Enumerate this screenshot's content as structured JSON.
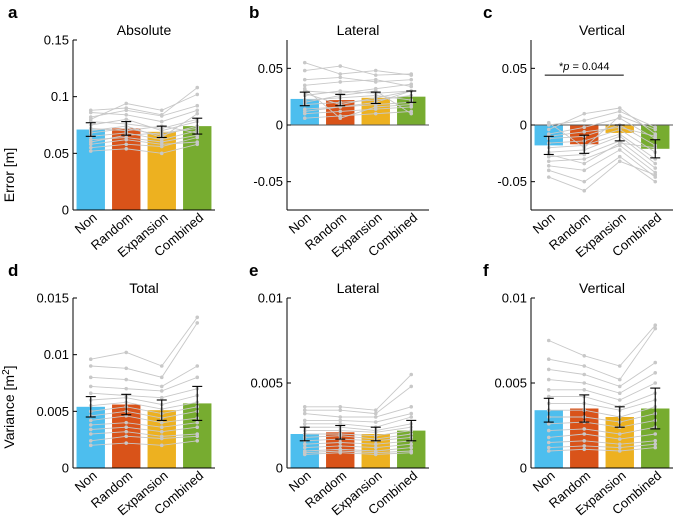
{
  "figure": {
    "ylabel_top": "Error [m]",
    "ylabel_bottom_main": "Variance [m",
    "ylabel_bottom_sup": "2",
    "ylabel_bottom_end": "]"
  },
  "colors": {
    "Non": "#4DBEEE",
    "Random": "#D95319",
    "Expansion": "#EDB120",
    "Combined": "#77AC30",
    "points": "#c8c8c8"
  },
  "chart_data": [
    {
      "id": "a",
      "panel_label": "a",
      "title": "Absolute",
      "type": "bar",
      "categories": [
        "Non",
        "Random",
        "Expansion",
        "Combined"
      ],
      "values": [
        0.071,
        0.072,
        0.069,
        0.074
      ],
      "err": [
        0.006,
        0.006,
        0.005,
        0.007
      ],
      "ylim": [
        0,
        0.15
      ],
      "yticks": [
        0,
        0.05,
        0.1,
        0.15
      ],
      "ytick_labels": [
        "0",
        "0.05",
        "0.1",
        "0.15"
      ],
      "subjects": [
        [
          0.086,
          0.084,
          0.078,
          0.088
        ],
        [
          0.082,
          0.088,
          0.083,
          0.092
        ],
        [
          0.078,
          0.076,
          0.072,
          0.08
        ],
        [
          0.075,
          0.08,
          0.07,
          0.078
        ],
        [
          0.072,
          0.07,
          0.074,
          0.068
        ],
        [
          0.068,
          0.072,
          0.066,
          0.074
        ],
        [
          0.065,
          0.068,
          0.062,
          0.07
        ],
        [
          0.062,
          0.064,
          0.06,
          0.066
        ],
        [
          0.058,
          0.062,
          0.058,
          0.06
        ],
        [
          0.055,
          0.058,
          0.056,
          0.064
        ],
        [
          0.052,
          0.054,
          0.05,
          0.058
        ],
        [
          0.08,
          0.094,
          0.088,
          0.102
        ],
        [
          0.088,
          0.09,
          0.084,
          0.108
        ],
        [
          0.06,
          0.066,
          0.068,
          0.072
        ],
        [
          0.07,
          0.074,
          0.064,
          0.085
        ]
      ]
    },
    {
      "id": "b",
      "panel_label": "b",
      "title": "Lateral",
      "type": "bar",
      "categories": [
        "Non",
        "Random",
        "Expansion",
        "Combined"
      ],
      "values": [
        0.023,
        0.022,
        0.024,
        0.025
      ],
      "err": [
        0.006,
        0.005,
        0.005,
        0.005
      ],
      "ylim": [
        -0.075,
        0.075
      ],
      "yticks": [
        -0.05,
        0,
        0.05
      ],
      "ytick_labels": [
        "-0.05",
        "0",
        "0.05"
      ],
      "subjects": [
        [
          0.055,
          0.045,
          0.048,
          0.044
        ],
        [
          0.048,
          0.052,
          0.044,
          0.045
        ],
        [
          0.04,
          0.042,
          0.038,
          0.04
        ],
        [
          0.035,
          0.038,
          0.04,
          0.034
        ],
        [
          0.03,
          0.028,
          0.032,
          0.036
        ],
        [
          0.026,
          0.03,
          0.028,
          0.03
        ],
        [
          0.022,
          0.024,
          0.026,
          0.022
        ],
        [
          0.018,
          0.02,
          0.022,
          0.026
        ],
        [
          0.014,
          0.016,
          0.018,
          0.02
        ],
        [
          0.01,
          0.012,
          0.014,
          0.016
        ],
        [
          0.006,
          0.008,
          0.01,
          0.012
        ],
        [
          0.028,
          0.018,
          0.024,
          0.03
        ],
        [
          0.02,
          0.026,
          0.03,
          0.01
        ],
        [
          0.012,
          0.016,
          0.02,
          0.03
        ],
        [
          0.032,
          0.006,
          0.016,
          0.018
        ]
      ]
    },
    {
      "id": "c",
      "panel_label": "c",
      "title": "Vertical",
      "type": "bar",
      "categories": [
        "Non",
        "Random",
        "Expansion",
        "Combined"
      ],
      "values": [
        -0.018,
        -0.017,
        -0.007,
        -0.021
      ],
      "err": [
        0.008,
        0.008,
        0.007,
        0.008
      ],
      "ylim": [
        -0.075,
        0.075
      ],
      "yticks": [
        -0.05,
        0,
        0.05
      ],
      "ytick_labels": [
        "-0.05",
        "0",
        "0.05"
      ],
      "annotation": {
        "star": "*",
        "p_label": "p",
        "p_value": "= 0.044"
      },
      "subjects": [
        [
          0.0,
          0.004,
          0.012,
          -0.002
        ],
        [
          -0.004,
          0.01,
          0.015,
          -0.008
        ],
        [
          -0.008,
          -0.002,
          0.006,
          -0.012
        ],
        [
          -0.012,
          -0.01,
          0.0,
          -0.018
        ],
        [
          -0.016,
          -0.014,
          -0.004,
          -0.024
        ],
        [
          -0.02,
          -0.018,
          -0.008,
          -0.03
        ],
        [
          -0.024,
          -0.022,
          -0.01,
          -0.034
        ],
        [
          -0.028,
          -0.026,
          -0.014,
          -0.038
        ],
        [
          -0.032,
          -0.03,
          -0.018,
          -0.042
        ],
        [
          -0.036,
          -0.04,
          -0.022,
          -0.046
        ],
        [
          -0.04,
          -0.05,
          -0.028,
          -0.05
        ],
        [
          -0.046,
          -0.058,
          -0.032,
          -0.044
        ],
        [
          -0.01,
          -0.006,
          -0.002,
          -0.01
        ],
        [
          0.002,
          -0.02,
          0.008,
          -0.004
        ],
        [
          -0.026,
          -0.034,
          -0.016,
          -0.02
        ]
      ]
    },
    {
      "id": "d",
      "panel_label": "d",
      "title": "Total",
      "type": "bar",
      "categories": [
        "Non",
        "Random",
        "Expansion",
        "Combined"
      ],
      "values": [
        0.0054,
        0.0056,
        0.0051,
        0.0057
      ],
      "err": [
        0.0009,
        0.0009,
        0.0009,
        0.0015
      ],
      "ylim": [
        0,
        0.015
      ],
      "yticks": [
        0,
        0.005,
        0.01,
        0.015
      ],
      "ytick_labels": [
        "0",
        "0.005",
        "0.01",
        "0.015"
      ],
      "subjects": [
        [
          0.0096,
          0.0102,
          0.009,
          0.0133
        ],
        [
          0.009,
          0.0088,
          0.008,
          0.0128
        ],
        [
          0.008,
          0.0078,
          0.0072,
          0.009
        ],
        [
          0.0072,
          0.007,
          0.0068,
          0.008
        ],
        [
          0.0066,
          0.0064,
          0.0062,
          0.007
        ],
        [
          0.006,
          0.0062,
          0.0056,
          0.0064
        ],
        [
          0.0055,
          0.0058,
          0.0052,
          0.0058
        ],
        [
          0.005,
          0.0054,
          0.0048,
          0.0054
        ],
        [
          0.0046,
          0.005,
          0.0044,
          0.005
        ],
        [
          0.0042,
          0.0046,
          0.004,
          0.0044
        ],
        [
          0.0038,
          0.004,
          0.0036,
          0.004
        ],
        [
          0.0034,
          0.0036,
          0.0032,
          0.0036
        ],
        [
          0.003,
          0.0032,
          0.0028,
          0.003
        ],
        [
          0.0024,
          0.0028,
          0.0026,
          0.0028
        ],
        [
          0.002,
          0.0022,
          0.002,
          0.0024
        ]
      ]
    },
    {
      "id": "e",
      "panel_label": "e",
      "title": "Lateral",
      "type": "bar",
      "categories": [
        "Non",
        "Random",
        "Expansion",
        "Combined"
      ],
      "values": [
        0.002,
        0.0021,
        0.002,
        0.0022
      ],
      "err": [
        0.0004,
        0.0004,
        0.0004,
        0.0006
      ],
      "ylim": [
        0,
        0.01
      ],
      "yticks": [
        0,
        0.005,
        0.01
      ],
      "ytick_labels": [
        "0",
        "0.005",
        "0.01"
      ],
      "subjects": [
        [
          0.0036,
          0.0036,
          0.0034,
          0.0055
        ],
        [
          0.0034,
          0.0034,
          0.0032,
          0.0048
        ],
        [
          0.0032,
          0.003,
          0.003,
          0.0036
        ],
        [
          0.0028,
          0.0028,
          0.0027,
          0.0032
        ],
        [
          0.0026,
          0.0026,
          0.0024,
          0.003
        ],
        [
          0.0024,
          0.0024,
          0.0022,
          0.0026
        ],
        [
          0.0022,
          0.0022,
          0.0021,
          0.0024
        ],
        [
          0.002,
          0.002,
          0.0019,
          0.0022
        ],
        [
          0.0018,
          0.0019,
          0.0017,
          0.002
        ],
        [
          0.0016,
          0.0017,
          0.0016,
          0.0018
        ],
        [
          0.0014,
          0.0015,
          0.0014,
          0.0016
        ],
        [
          0.0012,
          0.0013,
          0.0012,
          0.0014
        ],
        [
          0.001,
          0.0011,
          0.001,
          0.0012
        ],
        [
          0.0009,
          0.001,
          0.0009,
          0.001
        ],
        [
          0.0008,
          0.0009,
          0.0008,
          0.0009
        ]
      ]
    },
    {
      "id": "f",
      "panel_label": "f",
      "title": "Vertical",
      "type": "bar",
      "categories": [
        "Non",
        "Random",
        "Expansion",
        "Combined"
      ],
      "values": [
        0.0034,
        0.0035,
        0.003,
        0.0035
      ],
      "err": [
        0.0007,
        0.0008,
        0.0006,
        0.0012
      ],
      "ylim": [
        0,
        0.01
      ],
      "yticks": [
        0,
        0.005,
        0.01
      ],
      "ytick_labels": [
        "0",
        "0.005",
        "0.01"
      ],
      "subjects": [
        [
          0.0075,
          0.0066,
          0.006,
          0.0084
        ],
        [
          0.0064,
          0.006,
          0.0052,
          0.0082
        ],
        [
          0.0058,
          0.0055,
          0.0048,
          0.0062
        ],
        [
          0.0052,
          0.005,
          0.0044,
          0.0056
        ],
        [
          0.0046,
          0.0046,
          0.004,
          0.005
        ],
        [
          0.0042,
          0.0042,
          0.0036,
          0.0044
        ],
        [
          0.0038,
          0.0038,
          0.0034,
          0.004
        ],
        [
          0.0034,
          0.0034,
          0.003,
          0.0036
        ],
        [
          0.003,
          0.003,
          0.0027,
          0.0032
        ],
        [
          0.0026,
          0.0027,
          0.0024,
          0.0028
        ],
        [
          0.0022,
          0.0023,
          0.002,
          0.0024
        ],
        [
          0.0018,
          0.002,
          0.0017,
          0.002
        ],
        [
          0.0015,
          0.0016,
          0.0014,
          0.0016
        ],
        [
          0.0012,
          0.0013,
          0.0012,
          0.0014
        ],
        [
          0.001,
          0.0011,
          0.001,
          0.0012
        ]
      ]
    }
  ]
}
